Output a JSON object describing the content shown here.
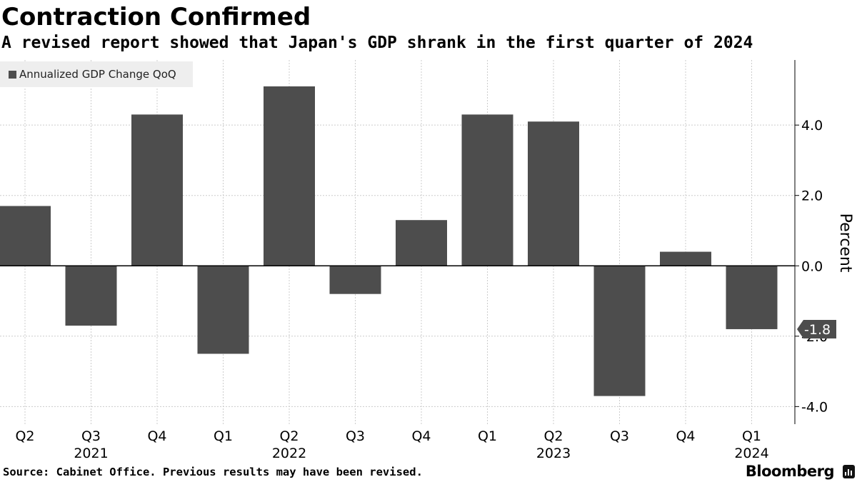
{
  "header": {
    "title": "Contraction Confirmed",
    "subtitle": "A revised report showed that Japan's GDP shrank in the first quarter of 2024"
  },
  "legend": {
    "label": "Annualized GDP Change QoQ"
  },
  "footer": {
    "source": "Source: Cabinet Office. Previous results may have been revised.",
    "brand": "Bloomberg"
  },
  "colors": {
    "bar": "#4d4d4d",
    "grid": "#cccccc",
    "axis": "#000000",
    "label_fill": "#4d4d4d"
  },
  "chart_data": {
    "type": "bar",
    "categories": [
      "Q2",
      "Q3",
      "Q4",
      "Q1",
      "Q2",
      "Q3",
      "Q4",
      "Q1",
      "Q2",
      "Q3",
      "Q4",
      "Q1"
    ],
    "year_labels": [
      {
        "label": "2021",
        "category_index": 1
      },
      {
        "label": "2022",
        "category_index": 4
      },
      {
        "label": "2023",
        "category_index": 8
      },
      {
        "label": "2024",
        "category_index": 11
      }
    ],
    "series": [
      {
        "name": "Annualized GDP Change QoQ",
        "values": [
          1.7,
          -1.7,
          4.3,
          -2.5,
          5.1,
          -0.8,
          1.3,
          4.3,
          4.1,
          -3.7,
          0.4,
          -1.8
        ]
      }
    ],
    "ylabel": "Percent",
    "yticks": [
      "4.0",
      "2.0",
      "0.0",
      "-2.0",
      "-4.0"
    ],
    "ytick_values": [
      4,
      2,
      0,
      -2,
      -4
    ],
    "ylim": [
      -4.5,
      5.85
    ],
    "last_value_label": "-1.8",
    "grid": true,
    "y_axis_side": "right",
    "legend_position": "top-left"
  }
}
